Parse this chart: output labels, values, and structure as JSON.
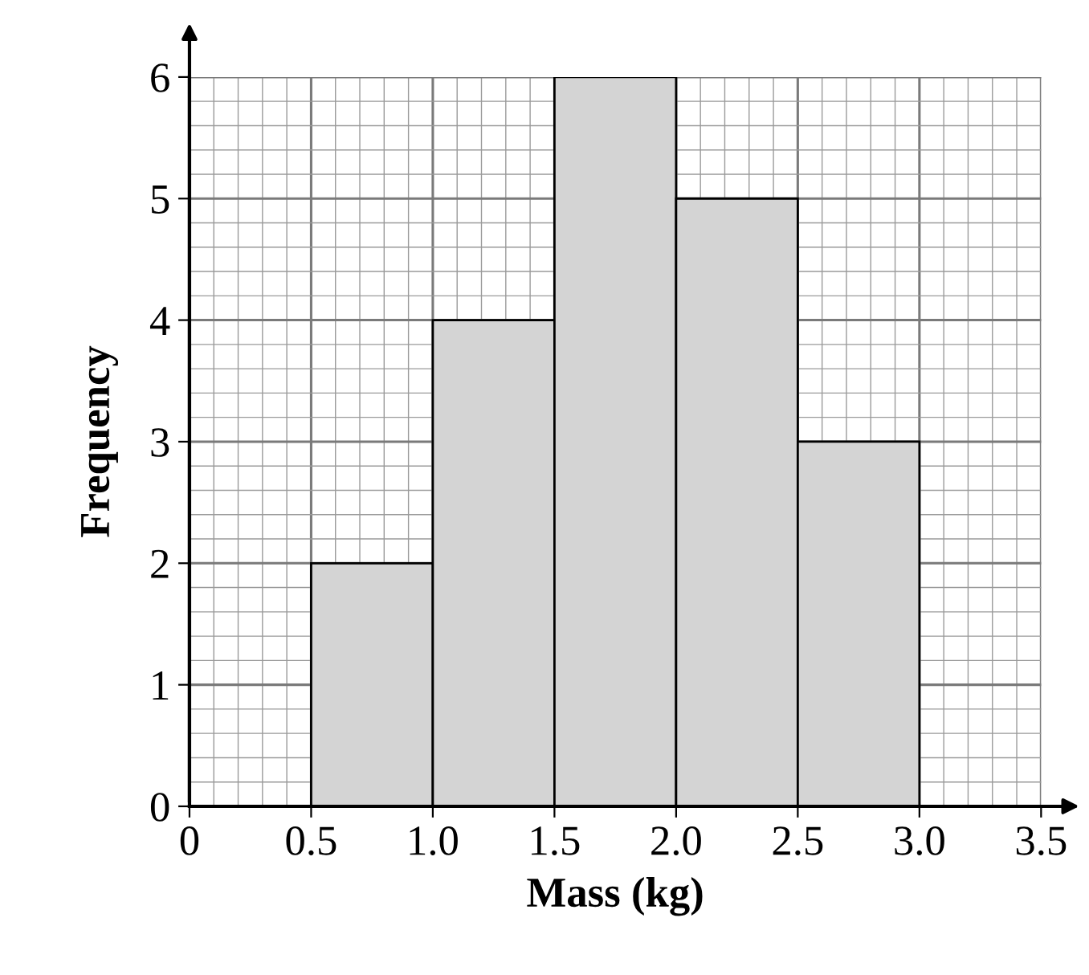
{
  "chart_data": {
    "type": "histogram",
    "xlabel": "Mass (kg)",
    "ylabel": "Frequency",
    "bins": [
      0.5,
      1.0,
      1.5,
      2.0,
      2.5,
      3.0
    ],
    "values": [
      2,
      4,
      6,
      5,
      3
    ],
    "color": "#d4d4d4",
    "xlim": [
      0,
      3.5
    ],
    "ylim": [
      0,
      6
    ],
    "xticks": [
      0,
      0.5,
      {
        "value": 1,
        "label": "1.0"
      },
      1.5,
      {
        "value": 2,
        "label": "2.0"
      },
      2.5,
      {
        "value": 3,
        "label": "3.0"
      },
      3.5
    ],
    "yticks": [
      0,
      1,
      2,
      3,
      4,
      5,
      6
    ],
    "grid": true
  }
}
